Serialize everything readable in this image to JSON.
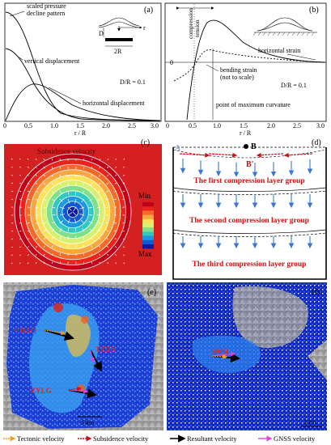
{
  "panel_a": {
    "tag": "(a)",
    "curve_labels": [
      "scaled pressure decline pattern",
      "vertical displacement",
      "horizontal displacement"
    ],
    "ratio": "D/R = 0.1",
    "inset": {
      "d": "D",
      "r": "r",
      "width": "2R"
    },
    "x_ticks": [
      "0",
      "0.5",
      "1.0",
      "1.5",
      "2.0",
      "2.5",
      "3.0"
    ],
    "xlabel": "r / R"
  },
  "panel_b": {
    "tag": "(b)",
    "compression": "compression",
    "tension": "tension",
    "horizontal_strain": "horizontal strain",
    "bending_strain": [
      "bending strain",
      "(not to scale)"
    ],
    "ratio": "D/R = 0.1",
    "max_curvature": "point of maximum curvature",
    "zero": "0",
    "x_ticks": [
      "0",
      "0.5",
      "1.0",
      "1.5",
      "2.0",
      "2.5",
      "3.0"
    ],
    "xlabel": "r / R"
  },
  "panel_c": {
    "tag": "(c)",
    "title": "Subsidence velocity",
    "legend_min": "Min",
    "legend_max": "Max",
    "legend_colors": [
      "#c0001a",
      "#e8241c",
      "#f26a2a",
      "#f8a640",
      "#fbe25a",
      "#d8f070",
      "#80e08a",
      "#30c8c0",
      "#1c98e0",
      "#1458d0",
      "#0a1aa0"
    ]
  },
  "panel_d": {
    "tag": "(d)",
    "point_a": "A",
    "point_b": "B",
    "point_b_prime": "B'",
    "layers": [
      "The first compression layer group",
      "The second compression layer group",
      "The third compression layer group"
    ]
  },
  "panel_e": {
    "tag": "(e)",
    "stations": [
      "CHAO",
      "TZDN",
      "ZYLG"
    ],
    "scale": "5 km"
  },
  "panel_f": {
    "tag": "(f)",
    "stations": [
      "SSOI"
    ],
    "scale": "5 km"
  },
  "legend": {
    "items": [
      {
        "label": "Tectonic velocity",
        "color": "#f0a020"
      },
      {
        "label": "Subsidence velocity",
        "color": "#d01010"
      },
      {
        "label": "Resultant velocity",
        "color": "#000000"
      },
      {
        "label": "GNSS velocity",
        "color": "#e040e0"
      }
    ]
  }
}
